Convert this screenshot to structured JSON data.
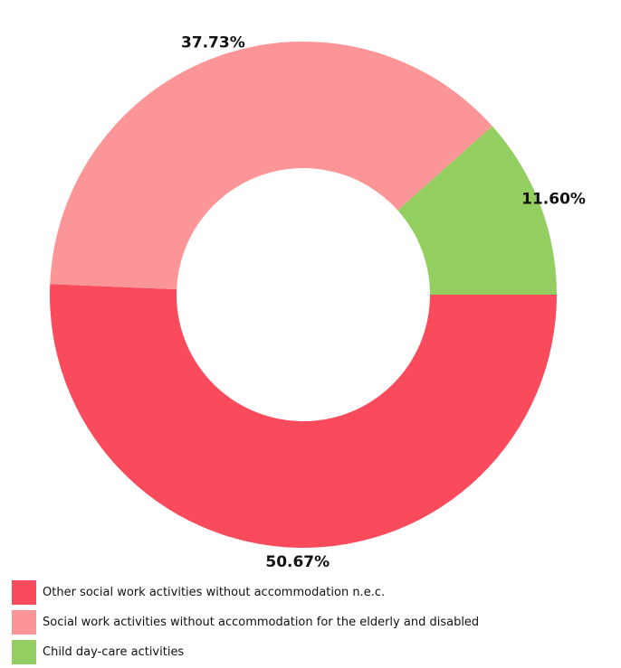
{
  "chart_data": {
    "type": "pie",
    "variant": "donut",
    "slices": [
      {
        "label": "Other social work activities without accommodation n.e.c.",
        "value": 50.67,
        "value_label": "50.67%",
        "color": "#f94b5c"
      },
      {
        "label": "Social work activities without accommodation for the elderly and disabled",
        "value": 37.73,
        "value_label": "37.73%",
        "color": "#fc9597"
      },
      {
        "label": "Child day-care activities",
        "value": 11.6,
        "value_label": "11.60%",
        "color": "#93cf60"
      }
    ],
    "legend_position": "bottom-left"
  }
}
